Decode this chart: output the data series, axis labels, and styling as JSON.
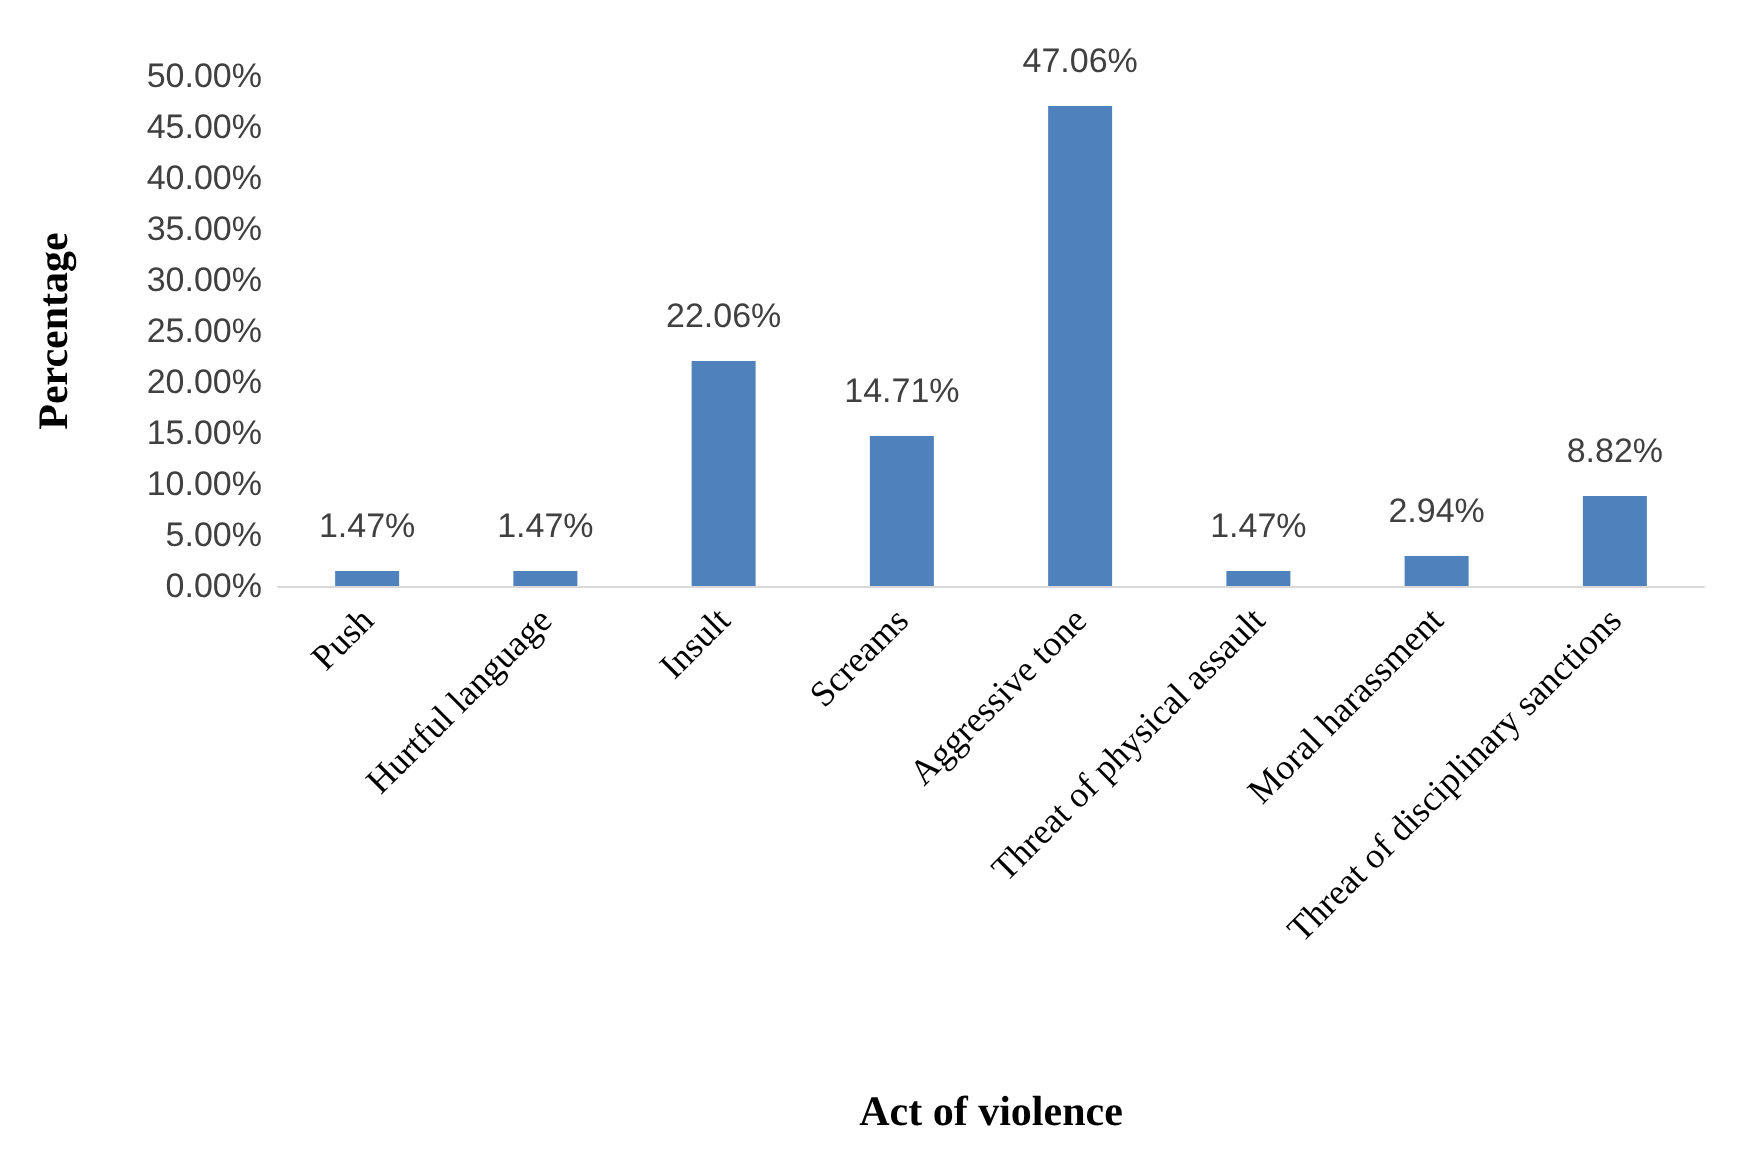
{
  "chart_data": {
    "type": "bar",
    "xlabel": "Act of violence",
    "ylabel": "Percentage",
    "categories": [
      "Push",
      "Hurtful language",
      "Insult",
      "Screams",
      "Aggressive tone",
      "Threat of physical assault",
      "Moral harassment",
      "Threat of disciplinary sanctions"
    ],
    "values": [
      1.47,
      1.47,
      22.06,
      14.71,
      47.06,
      1.47,
      2.94,
      8.82
    ],
    "value_labels": [
      "1.47%",
      "1.47%",
      "22.06%",
      "14.71%",
      "47.06%",
      "1.47%",
      "2.94%",
      "8.82%"
    ],
    "color": "#4f81bd",
    "ylim": [
      0,
      50
    ],
    "yticks": [
      {
        "value": 0,
        "label": "0.00%"
      },
      {
        "value": 5,
        "label": "5.00%"
      },
      {
        "value": 10,
        "label": "10.00%"
      },
      {
        "value": 15,
        "label": "15.00%"
      },
      {
        "value": 20,
        "label": "20.00%"
      },
      {
        "value": 25,
        "label": "25.00%"
      },
      {
        "value": 30,
        "label": "30.00%"
      },
      {
        "value": 35,
        "label": "35.00%"
      },
      {
        "value": 40,
        "label": "40.00%"
      },
      {
        "value": 45,
        "label": "45.00%"
      },
      {
        "value": 50,
        "label": "50.00%"
      }
    ],
    "grid": false
  }
}
